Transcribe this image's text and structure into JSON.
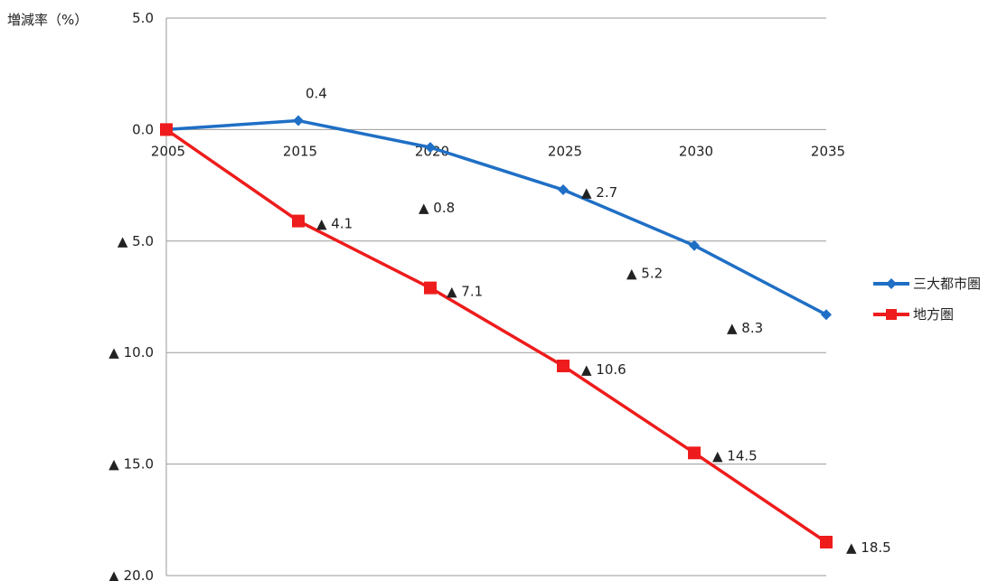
{
  "chart_data": {
    "type": "line",
    "ylabel": "増減率（%）",
    "x": [
      "2005",
      "2015",
      "2020",
      "2025",
      "2030",
      "2035"
    ],
    "y_tick_labels": [
      "5.0",
      "0.0",
      "▲ 5.0",
      "▲ 10.0",
      "▲ 15.0",
      "▲ 20.0"
    ],
    "y_ticks": [
      5,
      0,
      -5,
      -10,
      -15,
      -20
    ],
    "ylim": [
      -20,
      5
    ],
    "grid": true,
    "legend": "right",
    "series": [
      {
        "name": "三大都市圏",
        "color": "#1f6fc5",
        "marker": "diamond",
        "values": [
          0.0,
          0.4,
          -0.8,
          -2.7,
          -5.2,
          -8.3
        ],
        "labels": [
          "",
          "0.4",
          "▲ 0.8",
          "▲ 2.7",
          "▲ 5.2",
          "▲ 8.3"
        ]
      },
      {
        "name": "地方圏",
        "color": "#ee1c1c",
        "marker": "square",
        "values": [
          0.0,
          -4.1,
          -7.1,
          -10.6,
          -14.5,
          -18.5
        ],
        "labels": [
          "",
          "▲ 4.1",
          "▲ 7.1",
          "▲ 10.6",
          "▲ 14.5",
          "▲ 18.5"
        ]
      }
    ]
  }
}
